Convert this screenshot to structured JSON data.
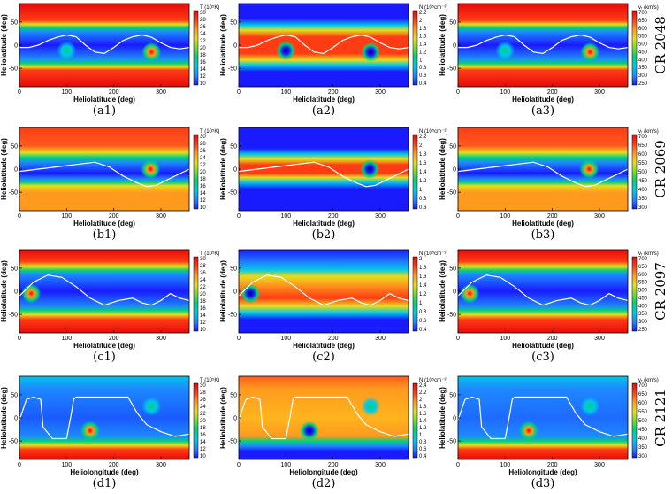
{
  "x_range": [
    0,
    360
  ],
  "y_range": [
    -90,
    90
  ],
  "x_ticks": [
    "0",
    "100",
    "200",
    "300"
  ],
  "x_tick_values": [
    0,
    100,
    200,
    300
  ],
  "y_ticks": [
    "50",
    "0",
    "-50"
  ],
  "y_tick_values": [
    50,
    0,
    -50
  ],
  "ylabel": "Heliolatitude (deg)",
  "colormap": [
    "#1a1aff",
    "#1e88ff",
    "#00c8e6",
    "#00d27a",
    "#78dc28",
    "#e6dc1e",
    "#ff9a1e",
    "#ff3c14",
    "#e60a0a"
  ],
  "colorbars": {
    "T": {
      "title": "T (10⁵K)",
      "ticks": [
        "30",
        "28",
        "26",
        "24",
        "22",
        "20",
        "18",
        "16",
        "14",
        "12",
        "10"
      ]
    },
    "N_a": {
      "title": "N (10⁵cm⁻³)",
      "ticks": [
        "2.2",
        "2",
        "1.8",
        "1.6",
        "1.4",
        "1.2",
        "1",
        "0.8",
        "0.6",
        "0.4"
      ]
    },
    "N_b": {
      "title": "N (10⁵cm⁻³)",
      "ticks": [
        "2.2",
        "2",
        "1.8",
        "1.6",
        "1.4",
        "1.2",
        "1",
        "0.8",
        "0.6"
      ]
    },
    "N_c": {
      "title": "N (10⁵cm⁻³)",
      "ticks": [
        "2",
        "1.8",
        "1.6",
        "1.4",
        "1.2",
        "1",
        "0.8",
        "0.6",
        "0.4"
      ]
    },
    "N_d": {
      "title": "N (10⁵cm⁻³)",
      "ticks": [
        "2.4",
        "2.2",
        "2",
        "1.8",
        "1.6",
        "1.4",
        "1.2",
        "1",
        "0.8",
        "0.6",
        "0.4"
      ]
    },
    "V_a": {
      "title": "vᵣ (km/s)",
      "ticks": [
        "700",
        "650",
        "600",
        "550",
        "500",
        "450",
        "400",
        "350",
        "300",
        "250"
      ]
    },
    "V_b": {
      "title": "vᵣ (km/s)",
      "ticks": [
        "700",
        "650",
        "600",
        "550",
        "500",
        "450",
        "400",
        "350",
        "300"
      ]
    },
    "V_c": {
      "title": "vᵣ (km/s)",
      "ticks": [
        "700",
        "650",
        "600",
        "550",
        "500",
        "450",
        "400",
        "350",
        "300",
        "250"
      ]
    },
    "V_d": {
      "title": "vᵣ (km/s)",
      "ticks": [
        "700",
        "650",
        "600",
        "550",
        "500",
        "450",
        "400",
        "350",
        "300"
      ]
    }
  },
  "rows": [
    {
      "id": "a",
      "cr_label": "CR 2048",
      "xlabel": "Heliolatitude (deg)",
      "current_sheet": {
        "lon": [
          0,
          20,
          40,
          60,
          80,
          100,
          120,
          140,
          160,
          180,
          200,
          220,
          240,
          260,
          280,
          300,
          320,
          340,
          360
        ],
        "lat": [
          -5,
          -5,
          0,
          10,
          17,
          22,
          18,
          0,
          -15,
          -18,
          -5,
          10,
          18,
          22,
          17,
          5,
          -5,
          -8,
          -5
        ]
      },
      "spots": [
        {
          "lon": 100,
          "lat": -12
        },
        {
          "lon": 280,
          "lat": -15
        }
      ],
      "panels": [
        {
          "caption": "(a1)",
          "cbar": "T"
        },
        {
          "caption": "(a2)",
          "cbar": "N_a"
        },
        {
          "caption": "(a3)",
          "cbar": "V_a"
        }
      ]
    },
    {
      "id": "b",
      "cr_label": "CR 2069",
      "xlabel": "Heliolatitude (deg)",
      "current_sheet": {
        "lon": [
          0,
          40,
          80,
          120,
          160,
          190,
          220,
          250,
          270,
          290,
          310,
          330,
          360
        ],
        "lat": [
          -5,
          0,
          5,
          10,
          15,
          5,
          -15,
          -30,
          -38,
          -35,
          -25,
          -15,
          0
        ]
      },
      "spots": [
        {
          "lon": 278,
          "lat": 0
        }
      ],
      "panels": [
        {
          "caption": "(b1)",
          "cbar": "T"
        },
        {
          "caption": "(b2)",
          "cbar": "N_b"
        },
        {
          "caption": "(b3)",
          "cbar": "V_b"
        }
      ]
    },
    {
      "id": "c",
      "cr_label": "CR 2097",
      "xlabel": "Heliolatitude (deg)",
      "current_sheet": {
        "lon": [
          0,
          30,
          60,
          90,
          120,
          150,
          180,
          210,
          240,
          260,
          280,
          300,
          320,
          340,
          360
        ],
        "lat": [
          -10,
          20,
          35,
          30,
          10,
          -15,
          -30,
          -20,
          -15,
          -25,
          -30,
          -20,
          -5,
          -15,
          -20
        ]
      },
      "spots": [
        {
          "lon": 25,
          "lat": -5
        }
      ],
      "panels": [
        {
          "caption": "(c1)",
          "cbar": "T"
        },
        {
          "caption": "(c2)",
          "cbar": "N_c"
        },
        {
          "caption": "(c3)",
          "cbar": "V_c"
        }
      ]
    },
    {
      "id": "d",
      "cr_label": "CR 2121",
      "xlabel": "Heliolongitude (deg)",
      "current_sheet": {
        "lon": [
          0,
          15,
          30,
          45,
          50,
          70,
          100,
          110,
          115,
          120,
          130,
          180,
          230,
          250,
          270,
          300,
          330,
          360
        ],
        "lat": [
          -5,
          40,
          45,
          40,
          -20,
          -45,
          -45,
          10,
          40,
          45,
          45,
          45,
          45,
          10,
          -15,
          -30,
          -40,
          -35
        ]
      },
      "spots": [
        {
          "lon": 150,
          "lat": -28
        },
        {
          "lon": 280,
          "lat": 25
        }
      ],
      "panels": [
        {
          "caption": "(d1)",
          "cbar": "T"
        },
        {
          "caption": "(d2)",
          "cbar": "N_d"
        },
        {
          "caption": "(d3)",
          "cbar": "V_d"
        }
      ]
    }
  ]
}
